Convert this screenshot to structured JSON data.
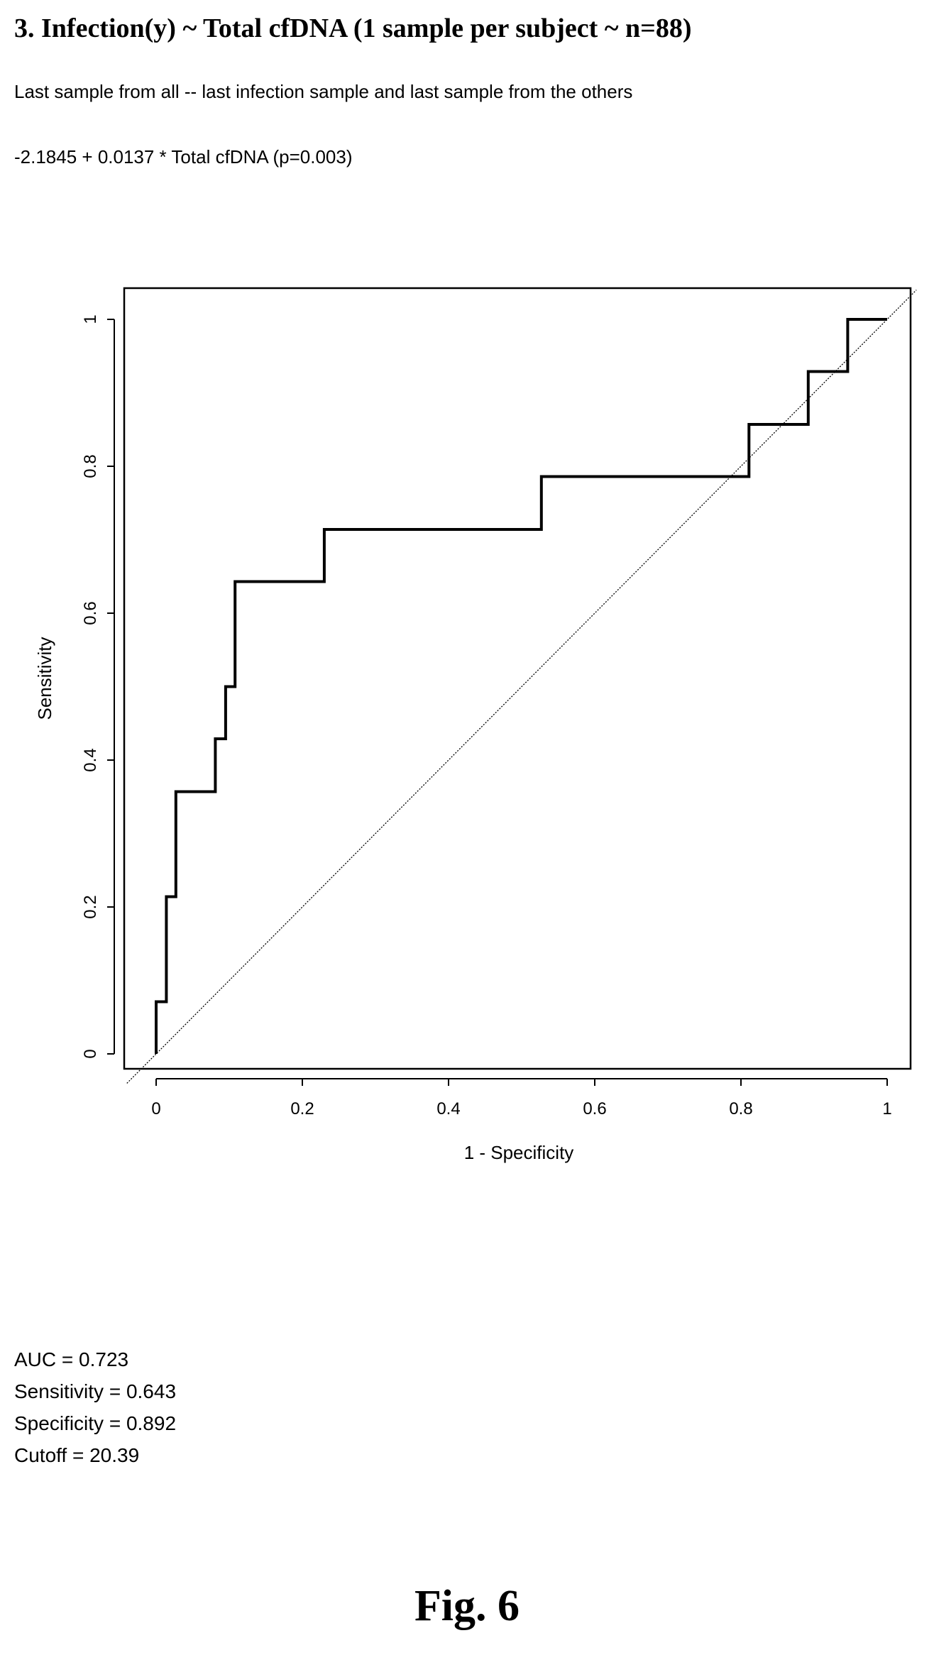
{
  "header": {
    "title": "3. Infection(y) ~ Total cfDNA (1 sample per subject ~ n=88)",
    "subtitle": "Last sample from all -- last infection sample and last sample from the others",
    "formula": "-2.1845 + 0.0137 * Total cfDNA  (p=0.003)"
  },
  "chart_data": {
    "type": "line",
    "title": "",
    "xlabel": "1 - Specificity",
    "ylabel": "Sensitivity",
    "xlim": [
      0,
      1
    ],
    "ylim": [
      0,
      1
    ],
    "x_ticks": [
      "0",
      "0.2",
      "0.4",
      "0.6",
      "0.8",
      "1"
    ],
    "y_ticks": [
      "0",
      "0.2",
      "0.4",
      "0.6",
      "0.8",
      "1"
    ],
    "grid": false,
    "series": [
      {
        "style": "solid",
        "x": [
          0,
          0,
          0.014,
          0.014,
          0.027,
          0.027,
          0.081,
          0.081,
          0.095,
          0.095,
          0.108,
          0.108,
          0.23,
          0.23,
          0.527,
          0.527,
          0.811,
          0.811,
          0.892,
          0.892,
          0.946,
          0.946,
          1.0
        ],
        "y": [
          0,
          0.071,
          0.071,
          0.214,
          0.214,
          0.357,
          0.357,
          0.429,
          0.429,
          0.5,
          0.5,
          0.643,
          0.643,
          0.714,
          0.714,
          0.786,
          0.786,
          0.857,
          0.857,
          0.929,
          0.929,
          1.0,
          1.0
        ]
      },
      {
        "style": "dotted",
        "x": [
          -0.04,
          1.04
        ],
        "y": [
          -0.04,
          1.04
        ]
      }
    ]
  },
  "stats": [
    "AUC = 0.723",
    "Sensitivity = 0.643",
    "Specificity = 0.892",
    "Cutoff = 20.39"
  ],
  "figure_label": "Fig. 6"
}
